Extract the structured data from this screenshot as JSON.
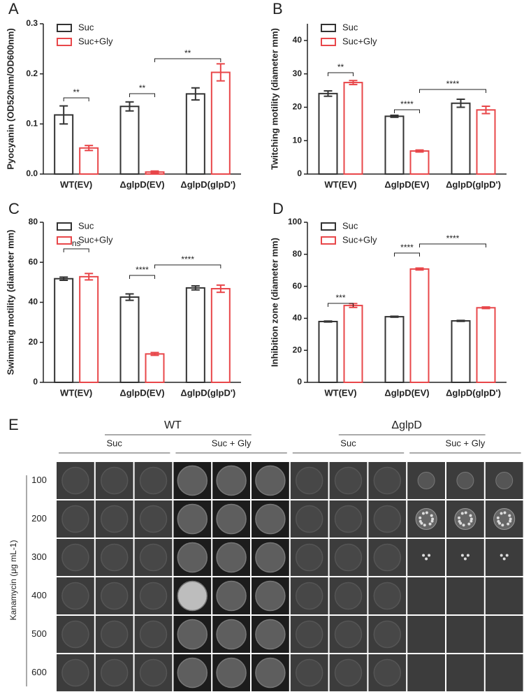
{
  "chart_data": [
    {
      "type": "bar",
      "label": "A",
      "y_label": "Pyocyanin (OD520nm/OD600nm)",
      "categories": [
        "WT(EV)",
        "ΔglpD(EV)",
        "ΔglpD(glpD')"
      ],
      "series": [
        {
          "name": "Suc",
          "color": "#333333",
          "values": [
            0.118,
            0.135,
            0.16
          ],
          "errors": [
            0.018,
            0.009,
            0.012
          ]
        },
        {
          "name": "Suc+Gly",
          "color": "#e8474a",
          "values": [
            0.052,
            0.004,
            0.203
          ],
          "errors": [
            0.005,
            0.002,
            0.017
          ]
        }
      ],
      "ylim": [
        0,
        0.3
      ],
      "yticks": [
        {
          "value": 0,
          "label": "0.0"
        },
        0.1,
        0.2,
        0.3
      ],
      "annotations": [
        "**",
        "**",
        "**"
      ]
    },
    {
      "type": "bar",
      "label": "B",
      "y_label": "Twitching motility (diameter mm)",
      "categories": [
        "WT(EV)",
        "ΔglpD(EV)",
        "ΔglpD(glpD')"
      ],
      "series": [
        {
          "name": "Suc",
          "color": "#333333",
          "values": [
            24.1,
            17.3,
            21.2
          ],
          "errors": [
            0.8,
            0.3,
            1.2
          ]
        },
        {
          "name": "Suc+Gly",
          "color": "#e8474a",
          "values": [
            27.4,
            6.9,
            19.2
          ],
          "errors": [
            0.6,
            0.3,
            1.1
          ]
        }
      ],
      "ylim": [
        0,
        45
      ],
      "yticks": [
        0,
        10,
        20,
        30,
        40
      ],
      "annotations": [
        "**",
        "****",
        "****"
      ]
    },
    {
      "type": "bar",
      "label": "C",
      "y_label": "Swimming motility (diameter mm)",
      "categories": [
        "WT(EV)",
        "ΔglpD(EV)",
        "ΔglpD(glpD')"
      ],
      "series": [
        {
          "name": "Suc",
          "color": "#333333",
          "values": [
            51.8,
            42.6,
            47.2
          ],
          "errors": [
            0.8,
            1.6,
            1.0
          ]
        },
        {
          "name": "Suc+Gly",
          "color": "#e8474a",
          "values": [
            52.8,
            14.2,
            46.8
          ],
          "errors": [
            1.6,
            0.7,
            1.8
          ]
        }
      ],
      "ylim": [
        0,
        80
      ],
      "yticks": [
        0,
        20,
        40,
        60,
        80
      ],
      "annotations": [
        "ns",
        "****",
        "****"
      ]
    },
    {
      "type": "bar",
      "label": "D",
      "y_label": "Inhibition zone (diameter mm)",
      "categories": [
        "WT(EV)",
        "ΔglpD(EV)",
        "ΔglpD(glpD')"
      ],
      "series": [
        {
          "name": "Suc",
          "color": "#333333",
          "values": [
            38.0,
            41.0,
            38.4
          ],
          "errors": [
            0.3,
            0.3,
            0.3
          ]
        },
        {
          "name": "Suc+Gly",
          "color": "#e8474a",
          "values": [
            48.0,
            70.8,
            46.6
          ],
          "errors": [
            1.2,
            0.6,
            0.5
          ]
        }
      ],
      "ylim": [
        0,
        100
      ],
      "yticks": [
        0,
        20,
        40,
        60,
        80,
        100
      ],
      "annotations": [
        "***",
        "****",
        "****"
      ]
    }
  ],
  "panel_e": {
    "label": "E",
    "y_label": "Kanamycin (μg mL-1)",
    "groups": [
      {
        "name": "WT",
        "conditions": [
          "Suc",
          "Suc + Gly"
        ]
      },
      {
        "name": "ΔglpD",
        "conditions": [
          "Suc",
          "Suc + Gly"
        ]
      }
    ],
    "rows": [
      100,
      200,
      300,
      400,
      500,
      600
    ]
  }
}
